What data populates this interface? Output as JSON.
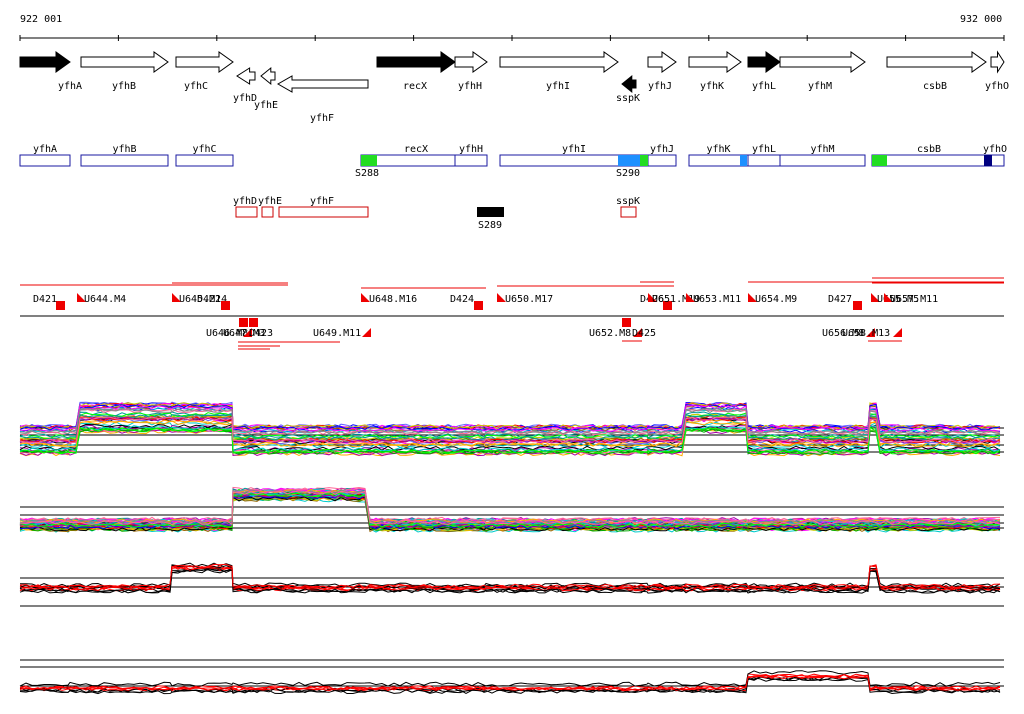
{
  "coord_start": "922 001",
  "coord_end": "932 000",
  "forward_genes": [
    {
      "name": "yfhA",
      "label": "yfhA",
      "filled": true
    },
    {
      "name": "yfhB",
      "label": "yfhB",
      "filled": false
    },
    {
      "name": "yfhC",
      "label": "yfhC",
      "filled": false
    },
    {
      "name": "recX",
      "label": "recX",
      "filled": true
    },
    {
      "name": "yfhH",
      "label": "yfhH",
      "filled": false
    },
    {
      "name": "yfhI",
      "label": "yfhI",
      "filled": false
    },
    {
      "name": "yfhJ",
      "label": "yfhJ",
      "filled": false
    },
    {
      "name": "yfhK",
      "label": "yfhK",
      "filled": false
    },
    {
      "name": "yfhL",
      "label": "yfhL",
      "filled": true
    },
    {
      "name": "yfhM",
      "label": "yfhM",
      "filled": false
    },
    {
      "name": "csbB",
      "label": "csbB",
      "filled": false
    },
    {
      "name": "yfhO",
      "label": "yfhO",
      "filled": false
    }
  ],
  "reverse_genes": [
    {
      "name": "yfhD",
      "label": "yfhD",
      "filled": false
    },
    {
      "name": "yfhE",
      "label": "yfhE",
      "filled": false
    },
    {
      "name": "yfhF",
      "label": "yfhF",
      "filled": false
    },
    {
      "name": "sspK",
      "label": "sspK",
      "filled": true
    }
  ],
  "fwd_transcripts": [
    {
      "label": "yfhA"
    },
    {
      "label": "yfhB"
    },
    {
      "label": "yfhC"
    },
    {
      "label": "recX"
    },
    {
      "label": "yfhH"
    },
    {
      "label": "yfhI"
    },
    {
      "label": "yfhJ"
    },
    {
      "label": "yfhK"
    },
    {
      "label": "yfhL"
    },
    {
      "label": "yfhM"
    },
    {
      "label": "csbB"
    },
    {
      "label": "yfhO"
    }
  ],
  "sigma_sites": [
    {
      "label": "S288",
      "color": "#22dd22"
    },
    {
      "label": "S290",
      "color": "#1e90ff"
    },
    {
      "label": "S289",
      "color": "#000000"
    }
  ],
  "rev_transcripts": [
    {
      "label": "yfhD"
    },
    {
      "label": "yfhE"
    },
    {
      "label": "yfhF"
    },
    {
      "label": "sspK"
    }
  ],
  "upper_segments": [
    {
      "label": "D421"
    },
    {
      "label": "U644.M4"
    },
    {
      "label": "U645.M14"
    },
    {
      "label": "D422"
    },
    {
      "label": "U648.M16"
    },
    {
      "label": "D424"
    },
    {
      "label": "U650.M17"
    },
    {
      "label": "D426"
    },
    {
      "label": "U651.M19"
    },
    {
      "label": "U653.M11"
    },
    {
      "label": "U654.M9"
    },
    {
      "label": "D427"
    },
    {
      "label": "U655.M5"
    },
    {
      "label": "U657.M11"
    }
  ],
  "lower_segments": [
    {
      "label": "U646.M8"
    },
    {
      "label": "U647.M3"
    },
    {
      "label": "D423"
    },
    {
      "label": "U649.M11"
    },
    {
      "label": "U652.M8"
    },
    {
      "label": "D425"
    },
    {
      "label": "U656.M8"
    },
    {
      "label": "U658.M13"
    }
  ],
  "colors": {
    "gene_border": "#000000",
    "transcript_border": "#1a1aa0",
    "rev_transcript": "#cc0000",
    "segment": "#ee0000",
    "axis": "#000000"
  }
}
